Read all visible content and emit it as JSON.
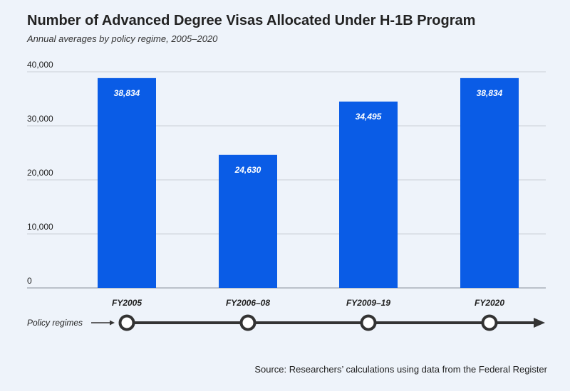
{
  "header": {
    "title": "Number of Advanced Degree Visas Allocated Under H-1B Program",
    "subtitle": "Annual averages by policy regime, 2005–2020"
  },
  "chart_data": {
    "type": "bar",
    "title": "Number of Advanced Degree Visas Allocated Under H-1B Program",
    "subtitle": "Annual averages by policy regime, 2005–2020",
    "categories": [
      "FY2005",
      "FY2006–08",
      "FY2009–19",
      "FY2020"
    ],
    "values": [
      38834,
      24630,
      34495,
      38834
    ],
    "value_labels": [
      "38,834",
      "24,630",
      "34,495",
      "38,834"
    ],
    "yticks": [
      0,
      10000,
      20000,
      30000,
      40000
    ],
    "ytick_labels": [
      "0",
      "10,000",
      "20,000",
      "30,000",
      "40,000"
    ],
    "ylim": [
      0,
      40000
    ],
    "grid": true,
    "bar_color": "#0a5ce6",
    "axis_note": "Policy regimes",
    "source": "Source: Researchers’ calculations using data from the Federal Register"
  }
}
